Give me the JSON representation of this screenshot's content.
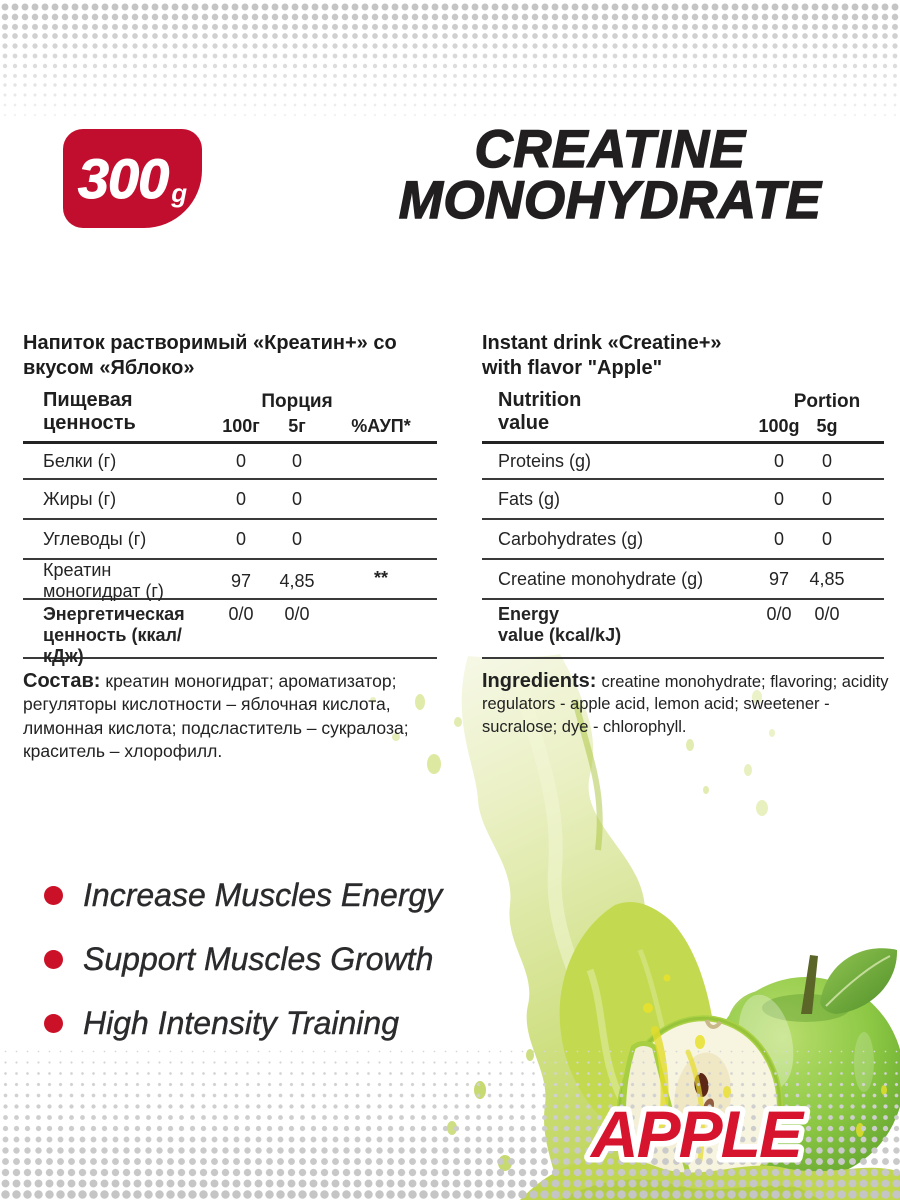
{
  "badge": {
    "weight": "300",
    "unit": "g"
  },
  "title": {
    "line1": "CREATINE",
    "line2": "MONOHYDRATE"
  },
  "colors": {
    "brand_red": "#c20e2e",
    "flavor_red": "#d6142d",
    "splash_green": "#bdd456",
    "text_dark": "#232323"
  },
  "left": {
    "heading_line1": "Напиток растворимый «Креатин+» со",
    "heading_line2": "вкусом «Яблоко»",
    "table": {
      "name_line1": "Пищевая",
      "name_line2": "ценность",
      "group_header": "Порция",
      "col_100": "100г",
      "col_5": "5г",
      "col_pct": "%АУП*",
      "rows": [
        {
          "label": "Белки (г)",
          "v100": "0",
          "v5": "0",
          "pct": ""
        },
        {
          "label": "Жиры (г)",
          "v100": "0",
          "v5": "0",
          "pct": ""
        },
        {
          "label": "Углеводы (г)",
          "v100": "0",
          "v5": "0",
          "pct": ""
        },
        {
          "label": "Креатин моногидрат (г)",
          "v100": "97",
          "v5": "4,85",
          "pct": "**"
        },
        {
          "label_line1": "Энергетическая",
          "label_line2": "ценность (ккал/кДж)",
          "v100": "0/0",
          "v5": "0/0",
          "pct": ""
        }
      ]
    },
    "ingredients_label": "Состав:",
    "ingredients_text": "креатин моногидрат; ароматизатор; регуляторы кислотности – яблочная кислота, лимонная кислота; подсластитель – сукралоза; краситель – хлорофилл."
  },
  "right": {
    "heading_line1": "Instant drink «Creatine+»",
    "heading_line2": "with flavor \"Apple\"",
    "table": {
      "name_line1": "Nutrition",
      "name_line2": "value",
      "group_header": "Portion",
      "col_100": "100g",
      "col_5": "5g",
      "rows": [
        {
          "label": "Proteins (g)",
          "v100": "0",
          "v5": "0"
        },
        {
          "label": "Fats (g)",
          "v100": "0",
          "v5": "0"
        },
        {
          "label": "Carbohydrates (g)",
          "v100": "0",
          "v5": "0"
        },
        {
          "label": "Creatine monohydrate (g)",
          "v100": "97",
          "v5": "4,85"
        },
        {
          "label_line1": "Energy",
          "label_line2": "value (kcal/kJ)",
          "v100": "0/0",
          "v5": "0/0"
        }
      ]
    },
    "ingredients_label": "Ingredients:",
    "ingredients_text": "creatine monohydrate; flavoring; acidity regulators - apple acid, lemon acid; sweetener - sucralose; dye - chlorophyll."
  },
  "benefits": [
    "Increase Muscles Energy",
    "Support Muscles Growth",
    "High Intensity Training"
  ],
  "flavor_label": "APPLE"
}
